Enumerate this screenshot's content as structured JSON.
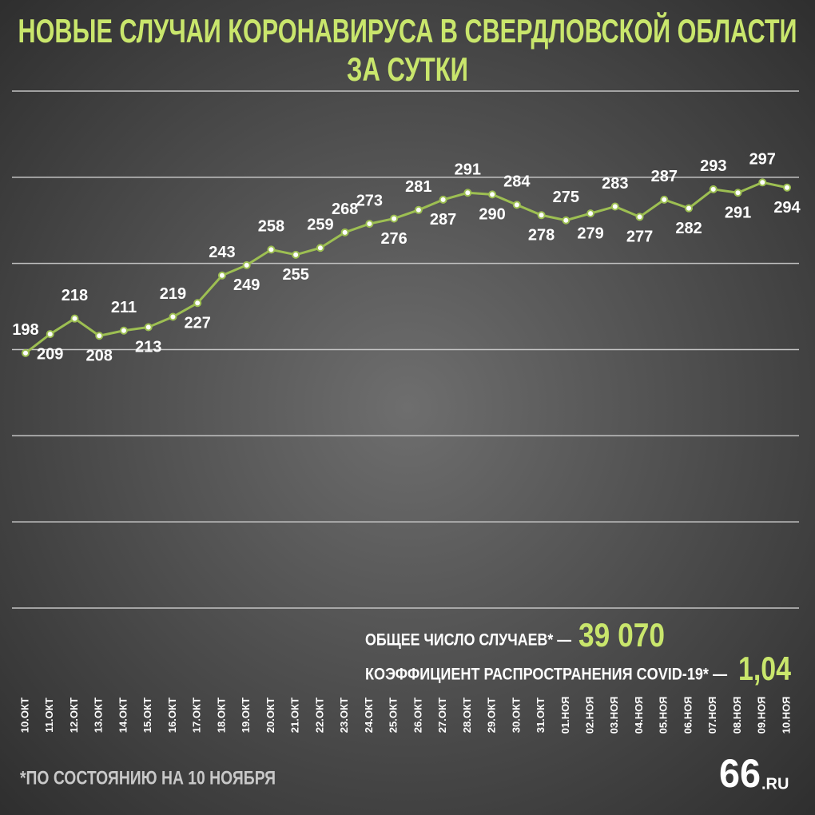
{
  "chart_data": {
    "type": "line",
    "title": [
      "НОВЫЕ СЛУЧАИ КОРОНАВИРУСА В СВЕРДЛОВСКОЙ ОБЛАСТИ",
      "ЗА СУТКИ"
    ],
    "categories": [
      "10.ОКТ",
      "11.ОКТ",
      "12.ОКТ",
      "13.ОКТ",
      "14.ОКТ",
      "15.ОКТ",
      "16.ОКТ",
      "17.ОКТ",
      "18.ОКТ",
      "19.ОКТ",
      "20.ОКТ",
      "21.ОКТ",
      "22.ОКТ",
      "23.ОКТ",
      "24.ОКТ",
      "25.ОКТ",
      "26.ОКТ",
      "27.ОКТ",
      "28.ОКТ",
      "29.ОКТ",
      "30.ОКТ",
      "31.ОКТ",
      "01.НОЯ",
      "02.НОЯ",
      "03.НОЯ",
      "04.НОЯ",
      "05.НОЯ",
      "06.НОЯ",
      "07.НОЯ",
      "08.НОЯ",
      "09.НОЯ",
      "10.НОЯ"
    ],
    "values": [
      198,
      209,
      218,
      208,
      211,
      213,
      219,
      227,
      243,
      249,
      258,
      255,
      259,
      268,
      273,
      276,
      281,
      287,
      291,
      290,
      284,
      278,
      275,
      279,
      283,
      277,
      287,
      282,
      293,
      291,
      297,
      294
    ],
    "color": "#9dbf52",
    "ylim": [
      50,
      350
    ],
    "yticks": [
      50,
      100,
      150,
      200,
      250,
      300,
      350
    ],
    "grid": true,
    "annotations": [
      {
        "label": "ОБЩЕЕ ЧИСЛО СЛУЧАЕВ* —",
        "value": "39 070"
      },
      {
        "label": "КОЭФФИЦИЕНТ РАСПРОСТРАНЕНИЯ COVID-19* —",
        "value": "1,04"
      }
    ],
    "footnote": "*ПО СОСТОЯНИЮ НА 10 НОЯБРЯ",
    "logo": {
      "main": "66",
      "suffix": ".RU"
    }
  }
}
